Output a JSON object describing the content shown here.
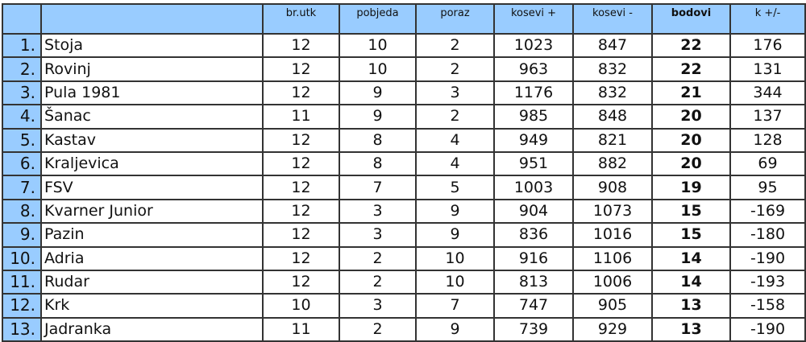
{
  "headers": [
    "",
    "",
    "br.utk",
    "pobjeda",
    "poraz",
    "kosevi +",
    "kosevi -",
    "bodovi",
    "k +/-"
  ],
  "rows": [
    [
      "1.",
      "Stoja",
      "12",
      "10",
      "2",
      "1023",
      "847",
      "22",
      "176"
    ],
    [
      "2.",
      "Rovinj",
      "12",
      "10",
      "2",
      "963",
      "832",
      "22",
      "131"
    ],
    [
      "3.",
      "Pula 1981",
      "12",
      "9",
      "3",
      "1176",
      "832",
      "21",
      "344"
    ],
    [
      "4.",
      "Šanac",
      "11",
      "9",
      "2",
      "985",
      "848",
      "20",
      "137"
    ],
    [
      "5.",
      "Kastav",
      "12",
      "8",
      "4",
      "949",
      "821",
      "20",
      "128"
    ],
    [
      "6.",
      "Kraljevica",
      "12",
      "8",
      "4",
      "951",
      "882",
      "20",
      "69"
    ],
    [
      "7.",
      "FSV",
      "12",
      "7",
      "5",
      "1003",
      "908",
      "19",
      "95"
    ],
    [
      "8.",
      "Kvarner Junior",
      "12",
      "3",
      "9",
      "904",
      "1073",
      "15",
      "-169"
    ],
    [
      "9.",
      "Pazin",
      "12",
      "3",
      "9",
      "836",
      "1016",
      "15",
      "-180"
    ],
    [
      "10.",
      "Adria",
      "12",
      "2",
      "10",
      "916",
      "1106",
      "14",
      "-190"
    ],
    [
      "11.",
      "Rudar",
      "12",
      "2",
      "10",
      "813",
      "1006",
      "14",
      "-193"
    ],
    [
      "12.",
      "Krk",
      "10",
      "3",
      "7",
      "747",
      "905",
      "13",
      "-158"
    ],
    [
      "13.",
      "Jadranka",
      "11",
      "2",
      "9",
      "739",
      "929",
      "13",
      "-190"
    ]
  ],
  "colors": {
    "header_bg": "#99ccff",
    "rank_bg": "#99ccff"
  }
}
